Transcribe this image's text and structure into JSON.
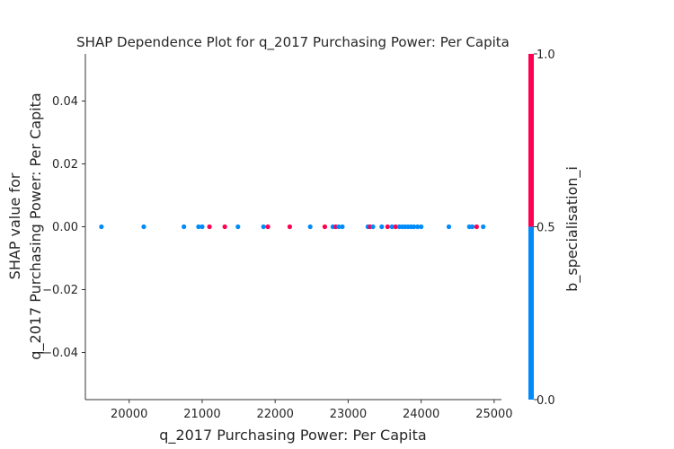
{
  "chart_data": {
    "type": "scatter",
    "title": "SHAP Dependence Plot for q_2017 Purchasing Power: Per Capita",
    "xlabel": "q_2017 Purchasing Power: Per Capita",
    "ylabel_lines": [
      "SHAP value for",
      "q_2017 Purchasing Power: Per Capita"
    ],
    "xlim": [
      19400,
      25100
    ],
    "ylim": [
      -0.055,
      0.055
    ],
    "xticks": [
      20000,
      21000,
      22000,
      23000,
      24000,
      25000
    ],
    "yticks": [
      -0.04,
      -0.02,
      0.0,
      0.02,
      0.04
    ],
    "ytick_labels": [
      "−0.04",
      "−0.02",
      "0.00",
      "0.02",
      "0.04"
    ],
    "grid": false,
    "colorbar": {
      "label": "b_specialisation_i",
      "range": [
        0.0,
        1.0
      ],
      "ticks": [
        0.0,
        0.5,
        1.0
      ],
      "tick_labels": [
        "0.0",
        "0.5",
        "1.0"
      ],
      "low_color": "#008bfb",
      "high_color": "#ff0051"
    },
    "points": [
      {
        "x": 19620,
        "y": 0.0,
        "c": 0
      },
      {
        "x": 20200,
        "y": 0.0,
        "c": 0
      },
      {
        "x": 20750,
        "y": 0.0,
        "c": 0
      },
      {
        "x": 20950,
        "y": 0.0,
        "c": 0
      },
      {
        "x": 21000,
        "y": 0.0,
        "c": 0
      },
      {
        "x": 21100,
        "y": 0.0,
        "c": 1
      },
      {
        "x": 21310,
        "y": 0.0,
        "c": 1
      },
      {
        "x": 21490,
        "y": 0.0,
        "c": 0
      },
      {
        "x": 21840,
        "y": 0.0,
        "c": 0
      },
      {
        "x": 21900,
        "y": 0.0,
        "c": 1
      },
      {
        "x": 22200,
        "y": 0.0,
        "c": 1
      },
      {
        "x": 22480,
        "y": 0.0,
        "c": 0
      },
      {
        "x": 22680,
        "y": 0.0,
        "c": 1
      },
      {
        "x": 22790,
        "y": 0.0,
        "c": 0
      },
      {
        "x": 22830,
        "y": 0.0,
        "c": 1
      },
      {
        "x": 22870,
        "y": 0.0,
        "c": 0
      },
      {
        "x": 22920,
        "y": 0.0,
        "c": 0
      },
      {
        "x": 23270,
        "y": 0.0,
        "c": 0
      },
      {
        "x": 23300,
        "y": 0.0,
        "c": 1
      },
      {
        "x": 23340,
        "y": 0.0,
        "c": 0
      },
      {
        "x": 23460,
        "y": 0.0,
        "c": 0
      },
      {
        "x": 23540,
        "y": 0.0,
        "c": 1
      },
      {
        "x": 23600,
        "y": 0.0,
        "c": 0
      },
      {
        "x": 23650,
        "y": 0.0,
        "c": 1
      },
      {
        "x": 23700,
        "y": 0.0,
        "c": 0
      },
      {
        "x": 23740,
        "y": 0.0,
        "c": 0
      },
      {
        "x": 23780,
        "y": 0.0,
        "c": 0
      },
      {
        "x": 23820,
        "y": 0.0,
        "c": 0
      },
      {
        "x": 23860,
        "y": 0.0,
        "c": 0
      },
      {
        "x": 23900,
        "y": 0.0,
        "c": 0
      },
      {
        "x": 23950,
        "y": 0.0,
        "c": 0
      },
      {
        "x": 24000,
        "y": 0.0,
        "c": 0
      },
      {
        "x": 24380,
        "y": 0.0,
        "c": 0
      },
      {
        "x": 24660,
        "y": 0.0,
        "c": 0
      },
      {
        "x": 24700,
        "y": 0.0,
        "c": 0
      },
      {
        "x": 24760,
        "y": 0.0,
        "c": 1
      },
      {
        "x": 24850,
        "y": 0.0,
        "c": 0
      }
    ]
  }
}
